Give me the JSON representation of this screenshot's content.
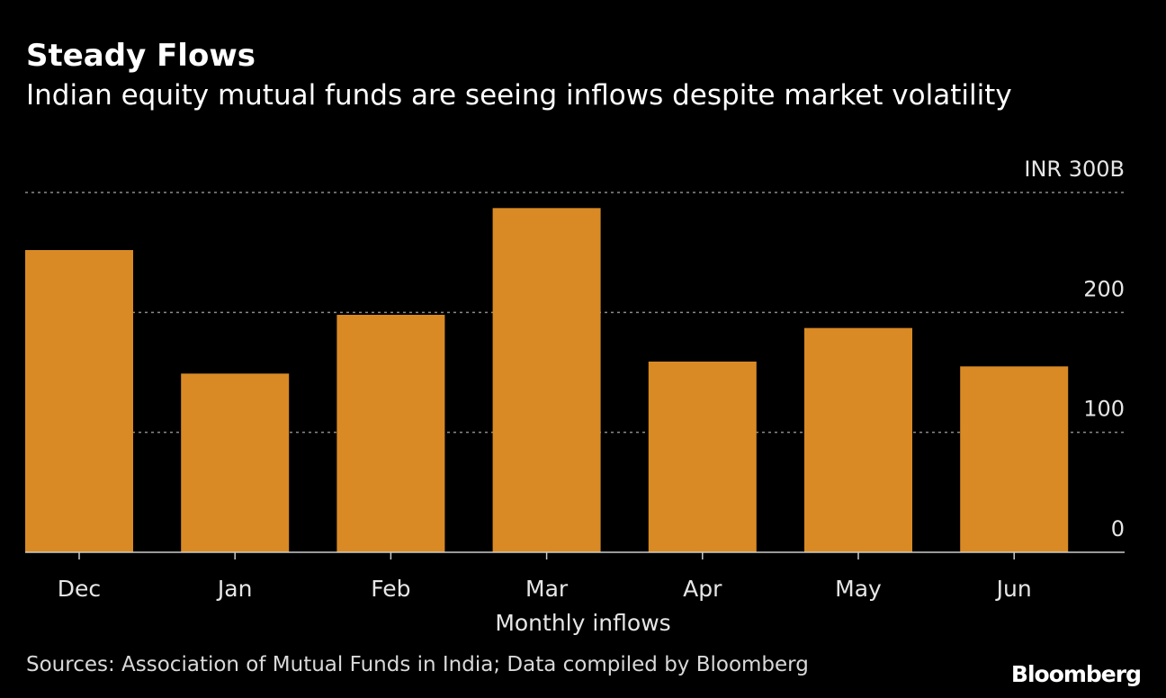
{
  "header": {
    "title": "Steady Flows",
    "subtitle": "Indian equity mutual funds are seeing inflows despite market volatility"
  },
  "footer": {
    "source": "Sources: Association of Mutual Funds in India; Data compiled by Bloomberg",
    "logo": "Bloomberg"
  },
  "colors": {
    "background": "#000000",
    "bar": "#d98a24",
    "grid": "#8a8a8a",
    "axis": "#cccccc",
    "text": "#ffffff",
    "tick_text": "#e6e6e6"
  },
  "chart_data": {
    "type": "bar",
    "categories": [
      "Dec",
      "Jan",
      "Feb",
      "Mar",
      "Apr",
      "May",
      "Jun"
    ],
    "series": [
      {
        "values": [
          252,
          149,
          198,
          287,
          159,
          187,
          155
        ]
      }
    ],
    "title": "Steady Flows",
    "subtitle": "Indian equity mutual funds are seeing inflows despite market volatility",
    "xlabel": "Monthly inflows",
    "ylabel": "",
    "ylim": [
      0,
      300
    ],
    "yticks": [
      {
        "value": 0,
        "label": "0"
      },
      {
        "value": 100,
        "label": "100"
      },
      {
        "value": 200,
        "label": "200"
      },
      {
        "value": 300,
        "label": "INR 300B"
      }
    ],
    "grid": true,
    "legend": "none"
  }
}
